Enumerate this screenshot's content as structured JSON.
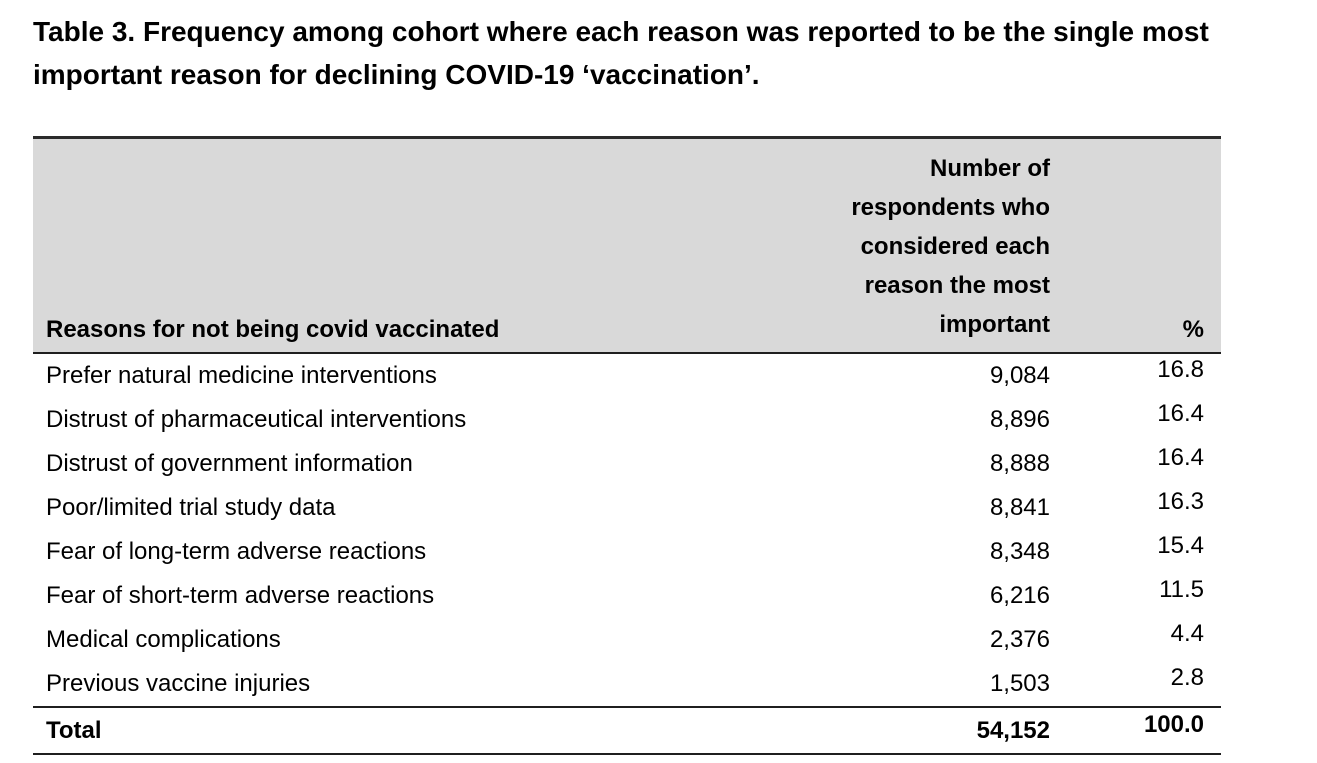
{
  "caption": "Table 3. Frequency among cohort where each reason was reported to be the single most\nimportant reason for declining COVID-19 ‘vaccination’.",
  "table": {
    "headers": {
      "reason": "Reasons for not being covid vaccinated",
      "count": "Number of\nrespondents who\nconsidered each\nreason the most\nimportant",
      "percent": "%"
    },
    "rows": [
      {
        "reason": "Prefer natural medicine interventions",
        "count": "9,084",
        "percent": "16.8"
      },
      {
        "reason": "Distrust of pharmaceutical interventions",
        "count": "8,896",
        "percent": "16.4"
      },
      {
        "reason": "Distrust of government information",
        "count": "8,888",
        "percent": "16.4"
      },
      {
        "reason": "Poor/limited trial study data",
        "count": "8,841",
        "percent": "16.3"
      },
      {
        "reason": "Fear of long-term adverse reactions",
        "count": "8,348",
        "percent": "15.4"
      },
      {
        "reason": "Fear of short-term adverse reactions",
        "count": "6,216",
        "percent": "11.5"
      },
      {
        "reason": "Medical complications",
        "count": "2,376",
        "percent": "4.4"
      },
      {
        "reason": "Previous vaccine injuries",
        "count": "1,503",
        "percent": "2.8"
      }
    ],
    "total": {
      "reason": "Total",
      "count": "54,152",
      "percent": "100.0"
    }
  },
  "colors": {
    "background": "#ffffff",
    "header_bg": "#d9d9d9",
    "border": "#1f1f1f",
    "text": "#000000"
  }
}
